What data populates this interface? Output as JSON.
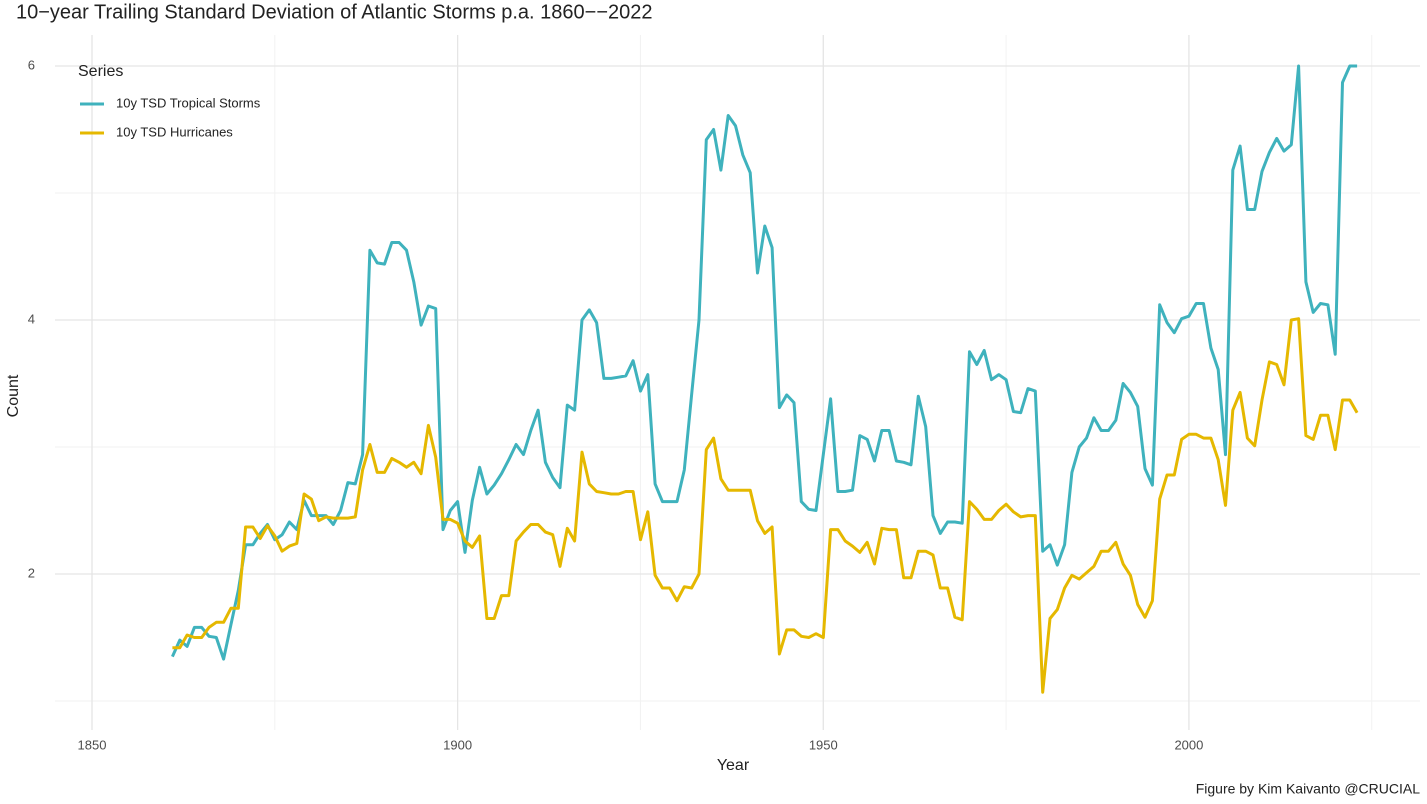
{
  "chart_data": {
    "type": "line",
    "title": "10−year Trailing Standard Deviation of Atlantic Storms p.a. 1860−−2022",
    "x_label": "Year",
    "y_label": "Count",
    "caption": "Figure by Kim Kaivanto @CRUCIAL",
    "legend_title": "Series",
    "legend_position": "top-left",
    "grid": true,
    "x": [
      1861,
      1862,
      1863,
      1864,
      1865,
      1866,
      1867,
      1868,
      1869,
      1870,
      1871,
      1872,
      1873,
      1874,
      1875,
      1876,
      1877,
      1878,
      1879,
      1880,
      1881,
      1882,
      1883,
      1884,
      1885,
      1886,
      1887,
      1888,
      1889,
      1890,
      1891,
      1892,
      1893,
      1894,
      1895,
      1896,
      1897,
      1898,
      1899,
      1900,
      1901,
      1902,
      1903,
      1904,
      1905,
      1906,
      1907,
      1908,
      1909,
      1910,
      1911,
      1912,
      1913,
      1914,
      1915,
      1916,
      1917,
      1918,
      1919,
      1920,
      1921,
      1922,
      1923,
      1924,
      1925,
      1926,
      1927,
      1928,
      1929,
      1930,
      1931,
      1932,
      1933,
      1934,
      1935,
      1936,
      1937,
      1938,
      1939,
      1940,
      1941,
      1942,
      1943,
      1944,
      1945,
      1946,
      1947,
      1948,
      1949,
      1950,
      1951,
      1952,
      1953,
      1954,
      1955,
      1956,
      1957,
      1958,
      1959,
      1960,
      1961,
      1962,
      1963,
      1964,
      1965,
      1966,
      1967,
      1968,
      1969,
      1970,
      1971,
      1972,
      1973,
      1974,
      1975,
      1976,
      1977,
      1978,
      1979,
      1980,
      1981,
      1982,
      1983,
      1984,
      1985,
      1986,
      1987,
      1988,
      1989,
      1990,
      1991,
      1992,
      1993,
      1994,
      1995,
      1996,
      1997,
      1998,
      1999,
      2000,
      2001,
      2002,
      2003,
      2004,
      2005,
      2006,
      2007,
      2008,
      2009,
      2010,
      2011,
      2012,
      2013,
      2014,
      2015,
      2016,
      2017,
      2018,
      2019,
      2020,
      2021,
      2022,
      2023
    ],
    "series": [
      {
        "name": "10y TSD Tropical Storms",
        "color": "#3fb2bd",
        "values": [
          1.35,
          1.48,
          1.43,
          1.58,
          1.58,
          1.51,
          1.5,
          1.33,
          1.6,
          1.87,
          2.23,
          2.23,
          2.32,
          2.39,
          2.27,
          2.31,
          2.41,
          2.35,
          2.58,
          2.46,
          2.46,
          2.46,
          2.39,
          2.5,
          2.72,
          2.71,
          2.94,
          4.55,
          4.45,
          4.44,
          4.61,
          4.61,
          4.55,
          4.3,
          3.96,
          4.11,
          4.09,
          2.35,
          2.5,
          2.57,
          2.17,
          2.58,
          2.84,
          2.63,
          2.7,
          2.79,
          2.9,
          3.02,
          2.94,
          3.13,
          3.29,
          2.88,
          2.76,
          2.68,
          3.33,
          3.29,
          4.0,
          4.08,
          3.98,
          3.54,
          3.54,
          3.55,
          3.56,
          3.68,
          3.44,
          3.57,
          2.71,
          2.57,
          2.57,
          2.57,
          2.82,
          3.41,
          4.0,
          5.42,
          5.5,
          5.18,
          5.61,
          5.53,
          5.3,
          5.16,
          4.37,
          4.74,
          4.57,
          3.31,
          3.41,
          3.35,
          2.57,
          2.51,
          2.5,
          2.94,
          3.38,
          2.65,
          2.65,
          2.66,
          3.09,
          3.06,
          2.89,
          3.13,
          3.13,
          2.89,
          2.88,
          2.86,
          3.4,
          3.16,
          2.46,
          2.32,
          2.41,
          2.41,
          2.4,
          3.75,
          3.65,
          3.76,
          3.53,
          3.57,
          3.53,
          3.28,
          3.27,
          3.46,
          3.44,
          2.18,
          2.23,
          2.07,
          2.23,
          2.8,
          3.0,
          3.07,
          3.23,
          3.13,
          3.13,
          3.21,
          3.5,
          3.43,
          3.32,
          2.83,
          2.7,
          4.12,
          3.98,
          3.9,
          4.01,
          4.03,
          4.13,
          4.13,
          3.78,
          3.61,
          2.94,
          5.18,
          5.37,
          4.87,
          4.87,
          5.17,
          5.32,
          5.43,
          5.33,
          5.38,
          6.0,
          4.3,
          4.06,
          4.13,
          4.12,
          3.73,
          5.87,
          6.0,
          6.0
        ]
      },
      {
        "name": "10y TSD Hurricanes",
        "color": "#e5b800",
        "values": [
          1.42,
          1.42,
          1.52,
          1.5,
          1.5,
          1.58,
          1.62,
          1.62,
          1.73,
          1.73,
          2.37,
          2.37,
          2.28,
          2.38,
          2.3,
          2.18,
          2.22,
          2.24,
          2.63,
          2.59,
          2.42,
          2.45,
          2.44,
          2.44,
          2.44,
          2.45,
          2.82,
          3.02,
          2.8,
          2.8,
          2.91,
          2.88,
          2.84,
          2.88,
          2.79,
          3.17,
          2.92,
          2.43,
          2.43,
          2.4,
          2.26,
          2.21,
          2.3,
          1.65,
          1.65,
          1.83,
          1.83,
          2.26,
          2.33,
          2.39,
          2.39,
          2.33,
          2.31,
          2.06,
          2.36,
          2.26,
          2.96,
          2.71,
          2.65,
          2.64,
          2.63,
          2.63,
          2.65,
          2.65,
          2.27,
          2.49,
          1.99,
          1.89,
          1.89,
          1.79,
          1.9,
          1.89,
          2.0,
          2.98,
          3.07,
          2.75,
          2.66,
          2.66,
          2.66,
          2.66,
          2.42,
          2.32,
          2.37,
          1.37,
          1.56,
          1.56,
          1.51,
          1.5,
          1.53,
          1.5,
          2.35,
          2.35,
          2.26,
          2.22,
          2.17,
          2.25,
          2.08,
          2.36,
          2.35,
          2.35,
          1.97,
          1.97,
          2.18,
          2.18,
          2.15,
          1.89,
          1.89,
          1.66,
          1.64,
          2.57,
          2.51,
          2.43,
          2.43,
          2.5,
          2.55,
          2.49,
          2.45,
          2.46,
          2.46,
          1.07,
          1.65,
          1.72,
          1.89,
          1.99,
          1.96,
          2.01,
          2.06,
          2.18,
          2.18,
          2.25,
          2.08,
          1.99,
          1.76,
          1.66,
          1.79,
          2.59,
          2.78,
          2.78,
          3.06,
          3.1,
          3.1,
          3.07,
          3.07,
          2.9,
          2.54,
          3.29,
          3.43,
          3.07,
          3.01,
          3.37,
          3.67,
          3.65,
          3.49,
          4.0,
          4.01,
          3.09,
          3.06,
          3.25,
          3.25,
          2.98,
          3.37,
          3.37,
          3.27
        ]
      }
    ],
    "xlim": [
      1844.94,
      2031.6
    ],
    "xticks": [
      1850,
      1900,
      1950,
      2000
    ],
    "minor_xticks": [
      1875,
      1925,
      1975,
      2025
    ],
    "ylim": [
      0.772,
      6.244
    ],
    "yticks": [
      2,
      4,
      6
    ],
    "minor_yticks": [
      1,
      3,
      5
    ]
  }
}
